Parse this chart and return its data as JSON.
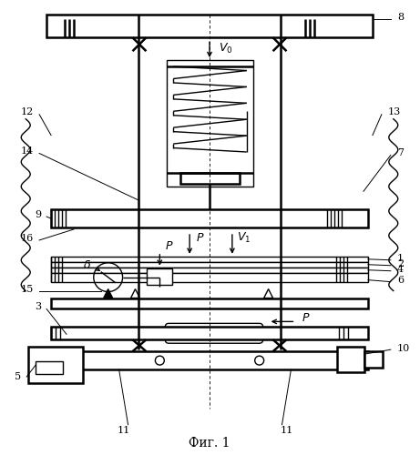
{
  "title": "Фиг. 1",
  "bg_color": "#ffffff",
  "figsize": [
    4.61,
    5.0
  ],
  "dpi": 100
}
